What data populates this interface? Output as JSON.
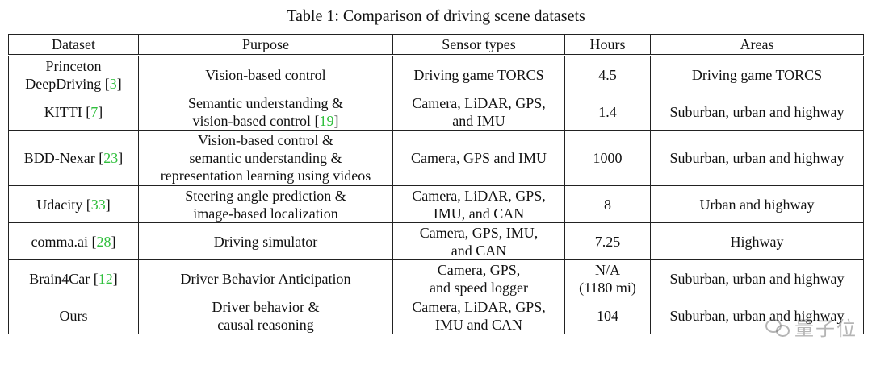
{
  "caption": "Table 1: Comparison of driving scene datasets",
  "headers": [
    "Dataset",
    "Purpose",
    "Sensor types",
    "Hours",
    "Areas"
  ],
  "rows": [
    {
      "dataset": [
        "Princeton",
        "DeepDriving"
      ],
      "cite": "3",
      "purpose": [
        "Vision-based control"
      ],
      "purpose_cite": "",
      "sensors": [
        "Driving game TORCS"
      ],
      "hours": [
        "4.5"
      ],
      "areas": "Driving game TORCS"
    },
    {
      "dataset": [
        "KITTI"
      ],
      "cite": "7",
      "purpose": [
        "Semantic understanding &",
        "vision-based control"
      ],
      "purpose_cite": "19",
      "sensors": [
        "Camera, LiDAR, GPS,",
        "and IMU"
      ],
      "hours": [
        "1.4"
      ],
      "areas": "Suburban, urban and highway"
    },
    {
      "dataset": [
        "BDD-Nexar"
      ],
      "cite": "23",
      "purpose": [
        "Vision-based control &",
        "semantic understanding &",
        "representation learning using videos"
      ],
      "purpose_cite": "",
      "sensors": [
        "Camera, GPS and IMU"
      ],
      "hours": [
        "1000"
      ],
      "areas": "Suburban, urban and highway"
    },
    {
      "dataset": [
        "Udacity"
      ],
      "cite": "33",
      "purpose": [
        "Steering angle prediction &",
        "image-based localization"
      ],
      "purpose_cite": "",
      "sensors": [
        "Camera, LiDAR, GPS,",
        "IMU, and CAN"
      ],
      "hours": [
        "8"
      ],
      "areas": "Urban and highway"
    },
    {
      "dataset": [
        "comma.ai"
      ],
      "cite": "28",
      "purpose": [
        "Driving simulator"
      ],
      "purpose_cite": "",
      "sensors": [
        "Camera, GPS, IMU,",
        "and CAN"
      ],
      "hours": [
        "7.25"
      ],
      "areas": "Highway"
    },
    {
      "dataset": [
        "Brain4Car"
      ],
      "cite": "12",
      "purpose": [
        "Driver Behavior Anticipation"
      ],
      "purpose_cite": "",
      "sensors": [
        "Camera, GPS,",
        "and speed logger"
      ],
      "hours": [
        "N/A",
        "(1180 mi)"
      ],
      "areas": "Suburban, urban and highway"
    },
    {
      "dataset": [
        "Ours"
      ],
      "cite": "",
      "purpose": [
        "Driver behavior &",
        "causal reasoning"
      ],
      "purpose_cite": "",
      "sensors": [
        "Camera, LiDAR, GPS,",
        "IMU and CAN"
      ],
      "hours": [
        "104"
      ],
      "areas": "Suburban, urban and highway"
    }
  ],
  "watermark": {
    "icon": "wechat-icon",
    "text": "量子位"
  }
}
